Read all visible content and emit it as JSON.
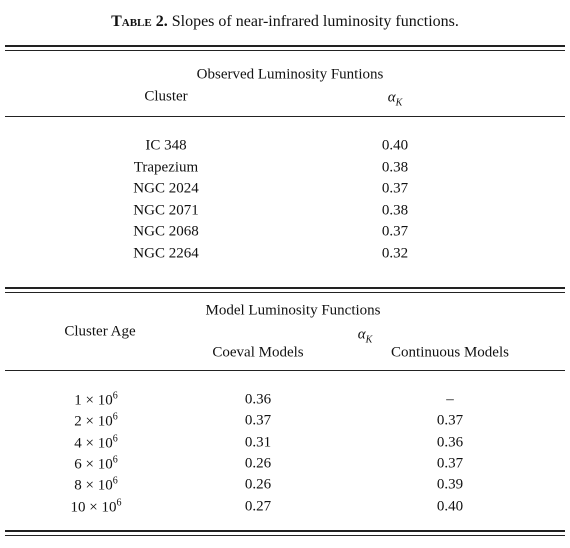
{
  "header": {
    "label": "Table 2.",
    "title": "Slopes of near-infrared luminosity functions."
  },
  "observed": {
    "heading": "Observed Luminosity Funtions",
    "col_cluster": "Cluster",
    "col_alpha": {
      "symbol": "α",
      "sub": "K"
    },
    "rows": [
      [
        "IC 348",
        "0.40"
      ],
      [
        "Trapezium",
        "0.38"
      ],
      [
        "NGC 2024",
        "0.37"
      ],
      [
        "NGC 2071",
        "0.38"
      ],
      [
        "NGC 2068",
        "0.37"
      ],
      [
        "NGC 2264",
        "0.32"
      ]
    ]
  },
  "model": {
    "heading": "Model Luminosity Functions",
    "col_age": "Cluster Age",
    "col_alpha": {
      "symbol": "α",
      "sub": "K"
    },
    "col_coeval": "Coeval Models",
    "col_continuous": "Continuous Models",
    "rows": [
      {
        "age": {
          "base": "1 × 10",
          "exp": "6"
        },
        "coeval": "0.36",
        "continuous": "–"
      },
      {
        "age": {
          "base": "2 × 10",
          "exp": "6"
        },
        "coeval": "0.37",
        "continuous": "0.37"
      },
      {
        "age": {
          "base": "4 × 10",
          "exp": "6"
        },
        "coeval": "0.31",
        "continuous": "0.36"
      },
      {
        "age": {
          "base": "6 × 10",
          "exp": "6"
        },
        "coeval": "0.26",
        "continuous": "0.37"
      },
      {
        "age": {
          "base": "8 × 10",
          "exp": "6"
        },
        "coeval": "0.26",
        "continuous": "0.39"
      },
      {
        "age": {
          "base": "10 × 10",
          "exp": "6"
        },
        "coeval": "0.27",
        "continuous": "0.40"
      }
    ]
  }
}
